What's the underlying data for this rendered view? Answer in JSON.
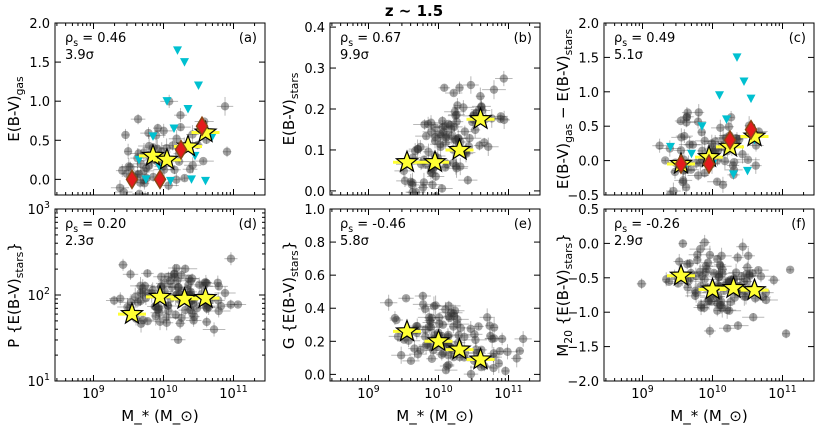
{
  "figure": {
    "suptitle": "z ~ 1.5",
    "shared_xlabel": "M_* (M_⊙)",
    "x_tick_labels": [
      "10^9",
      "10^10",
      "10^11"
    ],
    "colors": {
      "background_points": "#333333",
      "upper_limits": "#00c0d0",
      "stars": "#ffff33",
      "diamonds": "#e41a1c",
      "diamond_edge": "#8b4513"
    }
  },
  "chart_data": [
    {
      "id": "a",
      "type": "scatter",
      "panel_label": "(a)",
      "rho_text": "ρ_s = 0.46",
      "sigma_text": "3.9σ",
      "ylabel": "E(B-V)_gas",
      "log_y": false,
      "xlim_log": [
        8.45,
        11.45
      ],
      "ylim": [
        -0.2,
        2.0
      ],
      "y_ticks": [
        0.0,
        0.5,
        1.0,
        1.5,
        2.0
      ],
      "y_tick_labels": [
        "0.0",
        "0.5",
        "1.0",
        "1.5",
        "2.0"
      ],
      "stars": [
        {
          "logm": 9.85,
          "y": 0.3
        },
        {
          "logm": 10.05,
          "y": 0.25
        },
        {
          "logm": 10.35,
          "y": 0.42
        },
        {
          "logm": 10.6,
          "y": 0.6
        }
      ],
      "diamonds": [
        {
          "logm": 9.55,
          "y": 0.0
        },
        {
          "logm": 9.95,
          "y": 0.0
        },
        {
          "logm": 10.25,
          "y": 0.38
        },
        {
          "logm": 10.55,
          "y": 0.68
        }
      ],
      "upper_limits": [
        {
          "logm": 10.2,
          "y": 1.65
        },
        {
          "logm": 10.3,
          "y": 1.5
        },
        {
          "logm": 10.5,
          "y": 1.2
        },
        {
          "logm": 10.05,
          "y": 1.0
        },
        {
          "logm": 10.35,
          "y": 0.9
        },
        {
          "logm": 10.15,
          "y": 0.65
        },
        {
          "logm": 9.85,
          "y": 0.55
        },
        {
          "logm": 9.65,
          "y": 0.25
        },
        {
          "logm": 10.7,
          "y": 0.55
        },
        {
          "logm": 10.45,
          "y": 0.3
        },
        {
          "logm": 9.75,
          "y": 0.0
        },
        {
          "logm": 10.1,
          "y": -0.02
        },
        {
          "logm": 10.4,
          "y": 0.0
        },
        {
          "logm": 10.6,
          "y": -0.02
        },
        {
          "logm": 9.95,
          "y": 0.15
        }
      ],
      "cloud": {
        "n": 70,
        "center": [
          10.0,
          0.22
        ],
        "spread": [
          0.38,
          0.28
        ],
        "slope": 0.18,
        "seed": 11
      }
    },
    {
      "id": "b",
      "type": "scatter",
      "panel_label": "(b)",
      "rho_text": "ρ_s = 0.67",
      "sigma_text": "9.9σ",
      "ylabel": "E(B-V)_stars",
      "log_y": false,
      "xlim_log": [
        8.45,
        11.45
      ],
      "ylim": [
        -0.01,
        0.41
      ],
      "y_ticks": [
        0.0,
        0.1,
        0.2,
        0.3,
        0.4
      ],
      "y_tick_labels": [
        "0.0",
        "0.1",
        "0.2",
        "0.3",
        "0.4"
      ],
      "stars": [
        {
          "logm": 9.55,
          "y": 0.07
        },
        {
          "logm": 9.95,
          "y": 0.07
        },
        {
          "logm": 10.3,
          "y": 0.1
        },
        {
          "logm": 10.6,
          "y": 0.175
        }
      ],
      "diamonds": [],
      "upper_limits": [],
      "cloud": {
        "n": 110,
        "center": [
          10.1,
          0.1
        ],
        "spread": [
          0.38,
          0.05
        ],
        "slope": 0.12,
        "seed": 23
      }
    },
    {
      "id": "c",
      "type": "scatter",
      "panel_label": "(c)",
      "rho_text": "ρ_s = 0.49",
      "sigma_text": "5.1σ",
      "ylabel": "E(B-V)_gas − E(B-V)_stars",
      "log_y": false,
      "xlim_log": [
        8.45,
        11.45
      ],
      "ylim": [
        -0.5,
        2.0
      ],
      "y_ticks": [
        -0.5,
        0.0,
        0.5,
        1.0,
        1.5,
        2.0
      ],
      "y_tick_labels": [
        "−0.5",
        "0.0",
        "0.5",
        "1.0",
        "1.5",
        "2.0"
      ],
      "stars": [
        {
          "logm": 9.55,
          "y": -0.05
        },
        {
          "logm": 9.95,
          "y": 0.05
        },
        {
          "logm": 10.25,
          "y": 0.2
        },
        {
          "logm": 10.6,
          "y": 0.35
        }
      ],
      "diamonds": [
        {
          "logm": 9.55,
          "y": -0.05
        },
        {
          "logm": 9.95,
          "y": -0.05
        },
        {
          "logm": 10.25,
          "y": 0.3
        },
        {
          "logm": 10.55,
          "y": 0.45
        }
      ],
      "upper_limits": [
        {
          "logm": 10.35,
          "y": 1.5
        },
        {
          "logm": 10.45,
          "y": 1.15
        },
        {
          "logm": 10.1,
          "y": 0.95
        },
        {
          "logm": 10.55,
          "y": 0.9
        },
        {
          "logm": 10.2,
          "y": 0.6
        },
        {
          "logm": 9.85,
          "y": 0.5
        },
        {
          "logm": 10.6,
          "y": 0.3
        },
        {
          "logm": 9.4,
          "y": 0.2
        },
        {
          "logm": 9.7,
          "y": 0.1
        },
        {
          "logm": 10.0,
          "y": -0.05
        },
        {
          "logm": 10.3,
          "y": -0.2
        },
        {
          "logm": 10.5,
          "y": -0.15
        },
        {
          "logm": 9.6,
          "y": -0.1
        }
      ],
      "cloud": {
        "n": 70,
        "center": [
          10.05,
          0.15
        ],
        "spread": [
          0.38,
          0.28
        ],
        "slope": 0.12,
        "seed": 37
      }
    },
    {
      "id": "d",
      "type": "scatter",
      "panel_label": "(d)",
      "rho_text": "ρ_s = 0.20",
      "sigma_text": "2.3σ",
      "ylabel": "P {E(B-V)_stars}",
      "log_y": true,
      "xlim_log": [
        8.45,
        11.45
      ],
      "ylim_log": [
        1.0,
        3.0
      ],
      "y_ticks_log": [
        1,
        2,
        3
      ],
      "y_tick_labels": [
        "10^1",
        "10^2",
        "10^3"
      ],
      "stars": [
        {
          "logm": 9.55,
          "y": 60
        },
        {
          "logm": 9.95,
          "y": 95
        },
        {
          "logm": 10.3,
          "y": 90
        },
        {
          "logm": 10.6,
          "y": 92
        }
      ],
      "diamonds": [],
      "upper_limits": [],
      "cloud": {
        "n": 110,
        "center": [
          10.1,
          1.98
        ],
        "spread": [
          0.4,
          0.2
        ],
        "slope": 0.05,
        "seed": 51
      }
    },
    {
      "id": "e",
      "type": "scatter",
      "panel_label": "(e)",
      "rho_text": "ρ_s = -0.46",
      "sigma_text": "5.8σ",
      "ylabel": "G {E(B-V)_stars}",
      "log_y": false,
      "xlim_log": [
        8.45,
        11.45
      ],
      "ylim": [
        -0.04,
        1.0
      ],
      "y_ticks": [
        0.0,
        0.2,
        0.4,
        0.6,
        0.8,
        1.0
      ],
      "y_tick_labels": [
        "0.0",
        "0.2",
        "0.4",
        "0.6",
        "0.8",
        "1.0"
      ],
      "stars": [
        {
          "logm": 9.55,
          "y": 0.26
        },
        {
          "logm": 10.0,
          "y": 0.2
        },
        {
          "logm": 10.3,
          "y": 0.15
        },
        {
          "logm": 10.6,
          "y": 0.09
        }
      ],
      "diamonds": [],
      "upper_limits": [],
      "cloud": {
        "n": 110,
        "center": [
          10.1,
          0.2
        ],
        "spread": [
          0.4,
          0.1
        ],
        "slope": -0.1,
        "seed": 67
      }
    },
    {
      "id": "f",
      "type": "scatter",
      "panel_label": "(f)",
      "rho_text": "ρ_s = -0.26",
      "sigma_text": "2.9σ",
      "ylabel": "M_20 {E(B-V)_stars}",
      "log_y": false,
      "xlim_log": [
        8.45,
        11.45
      ],
      "ylim": [
        -2.0,
        0.5
      ],
      "y_ticks": [
        -2.0,
        -1.5,
        -1.0,
        -0.5,
        0.0,
        0.5
      ],
      "y_tick_labels": [
        "−2.0",
        "−1.5",
        "−1.0",
        "−0.5",
        "0.0",
        "0.5"
      ],
      "stars": [
        {
          "logm": 9.55,
          "y": -0.47
        },
        {
          "logm": 10.0,
          "y": -0.67
        },
        {
          "logm": 10.3,
          "y": -0.65
        },
        {
          "logm": 10.6,
          "y": -0.68
        }
      ],
      "diamonds": [],
      "upper_limits": [],
      "cloud": {
        "n": 110,
        "center": [
          10.1,
          -0.62
        ],
        "spread": [
          0.4,
          0.26
        ],
        "slope": -0.15,
        "seed": 83
      }
    }
  ]
}
